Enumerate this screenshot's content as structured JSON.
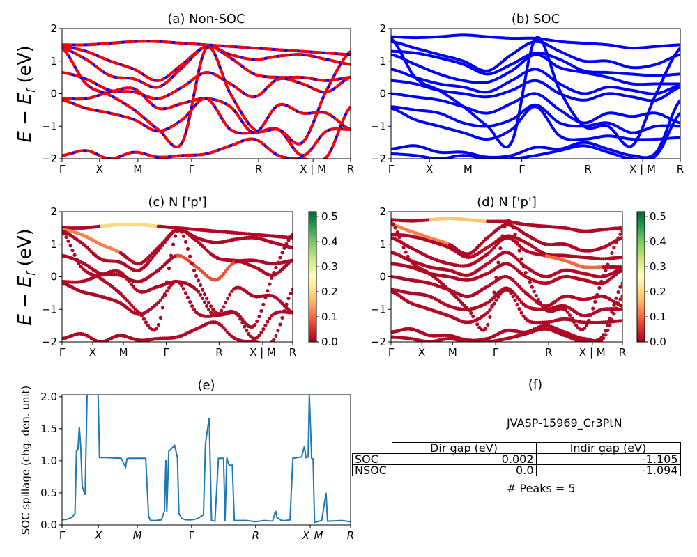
{
  "figure": {
    "material_label": "JVASP-15969_Cr3PtN",
    "peaks_label": "# Peaks = 5"
  },
  "gap_table": {
    "headers": [
      "",
      "Dir gap (eV)",
      "Indir gap (eV)"
    ],
    "rows": [
      {
        "label": "SOC",
        "dir": "0.002",
        "indir": "-1.105"
      },
      {
        "label": "NSOC",
        "dir": "0.0",
        "indir": "-1.094"
      }
    ]
  },
  "colors": {
    "nonsoc_red": "#ff0000",
    "nonsoc_blue": "#0000ff",
    "soc_blue": "#0000ff",
    "spillage_line": "#1f77b4",
    "cmap": [
      "#a50026",
      "#d73027",
      "#f46d43",
      "#fdae61",
      "#fee08b",
      "#ffffbf",
      "#d9ef8b",
      "#a6d96a",
      "#66bd63",
      "#1a9850",
      "#006837"
    ]
  },
  "chart_data": [
    {
      "id": "a",
      "type": "line",
      "title": "(a) Non-SOC",
      "ylabel": "E − E_f (eV)",
      "ylim": [
        -2,
        2
      ],
      "yticks": [
        "−2",
        "−1",
        "0",
        "1",
        "2"
      ],
      "ytick_values": [
        -2,
        -1,
        0,
        1,
        2
      ],
      "xticks": [
        "Γ",
        "X",
        "M",
        "Γ",
        "R",
        "X | M",
        "R"
      ],
      "xtick_values": [
        0,
        0.13,
        0.263,
        0.449,
        0.681,
        0.87,
        1.0
      ],
      "style": "red-blue-dashed",
      "bands": [
        [
          1.5,
          1.5,
          1.55,
          1.6,
          1.6,
          1.55,
          1.5,
          1.45,
          1.4,
          1.35,
          1.3,
          1.25,
          1.2
        ],
        [
          1.45,
          1.3,
          1.0,
          0.75,
          0.4,
          0.9,
          1.45,
          1.2,
          1.05,
          1.15,
          1.2,
          1.05,
          0.9
        ],
        [
          1.4,
          1.05,
          0.55,
          0.45,
          0.2,
          0.8,
          1.45,
          1.1,
          0.6,
          0.5,
          0.5,
          0.4,
          0.5
        ],
        [
          0.65,
          0.45,
          0.1,
          0.05,
          -0.15,
          0.2,
          0.65,
          0.3,
          -0.1,
          0.45,
          0.3,
          0.05,
          0.5
        ],
        [
          -0.15,
          -0.15,
          0.05,
          0.15,
          -0.45,
          -0.3,
          -0.15,
          -0.4,
          -1.2,
          -0.35,
          -0.6,
          -0.6,
          -1.1
        ],
        [
          -0.2,
          -0.45,
          -0.6,
          -0.8,
          -1.15,
          -0.8,
          -0.15,
          -1.1,
          -1.2,
          -1.1,
          -1.9,
          -1.15,
          -1.1
        ],
        [
          -1.9,
          -1.75,
          -2.0,
          -1.8,
          -1.95,
          -1.9,
          -1.85,
          -1.6,
          -1.4,
          -1.9,
          -2.0,
          -1.95,
          -0.4
        ],
        [
          1.4,
          0.3,
          -0.05,
          -0.5,
          -1.1,
          -1.5,
          1.4,
          0.0,
          -1.1,
          -1.1,
          -1.5,
          0.1,
          1.3
        ]
      ]
    },
    {
      "id": "b",
      "type": "line",
      "title": "(b) SOC",
      "ylim": [
        -2,
        2
      ],
      "yticks": [
        "−2",
        "−1",
        "0",
        "1",
        "2"
      ],
      "ytick_values": [
        -2,
        -1,
        0,
        1,
        2
      ],
      "xticks": [
        "Γ",
        "X",
        "M",
        "Γ",
        "R",
        "X | M",
        "R"
      ],
      "xtick_values": [
        0,
        0.133,
        0.266,
        0.452,
        0.681,
        0.87,
        1.0
      ],
      "style": "blue",
      "bands": [
        [
          1.75,
          1.72,
          1.75,
          1.8,
          1.75,
          1.7,
          1.7,
          1.6,
          1.55,
          1.5,
          1.4,
          1.45,
          1.5
        ],
        [
          1.6,
          1.4,
          1.2,
          1.0,
          0.7,
          1.2,
          1.6,
          1.3,
          1.0,
          1.0,
          0.8,
          0.9,
          1.2
        ],
        [
          1.3,
          1.25,
          1.1,
          0.9,
          0.6,
          0.9,
          1.25,
          1.05,
          0.7,
          0.65,
          0.6,
          0.55,
          0.6
        ],
        [
          1.2,
          0.9,
          0.6,
          0.4,
          0.35,
          0.7,
          1.2,
          0.8,
          0.65,
          0.5,
          0.3,
          0.3,
          0.3
        ],
        [
          0.75,
          0.5,
          0.3,
          0.2,
          0.05,
          0.4,
          0.75,
          0.3,
          0.0,
          0.2,
          0.1,
          0.0,
          0.25
        ],
        [
          0.4,
          0.3,
          0.1,
          0.0,
          -0.1,
          0.1,
          0.4,
          0.0,
          -0.2,
          0.0,
          -0.1,
          -0.2,
          0.2
        ],
        [
          0.0,
          -0.1,
          -0.2,
          -0.4,
          -0.6,
          -0.3,
          0.0,
          -0.5,
          -0.9,
          -0.6,
          -0.7,
          -0.6,
          -0.9
        ],
        [
          -0.4,
          -0.5,
          -0.6,
          -0.9,
          -1.0,
          -0.8,
          -0.35,
          -0.9,
          -1.0,
          -0.9,
          -1.2,
          -1.0,
          -1.0
        ],
        [
          -0.45,
          -0.8,
          -1.0,
          -1.2,
          -1.4,
          -1.1,
          -0.4,
          -1.3,
          -1.4,
          -1.3,
          -1.4,
          -1.4,
          -1.35
        ],
        [
          -1.7,
          -1.6,
          -1.8,
          -1.8,
          -1.95,
          -1.9,
          -1.65,
          -1.7,
          -1.5,
          -1.7,
          -1.9,
          -1.8,
          -0.2
        ],
        [
          -1.85,
          -1.9,
          -2.0,
          -1.9,
          -2.0,
          -2.0,
          -1.9,
          -1.75,
          -1.6,
          -1.8,
          -2.0,
          -1.9,
          -0.6
        ],
        [
          1.7,
          0.5,
          0.1,
          -0.4,
          -1.0,
          -1.5,
          1.7,
          0.1,
          -1.0,
          -1.0,
          -1.6,
          0.0,
          1.4
        ]
      ]
    },
    {
      "id": "c",
      "type": "scatter",
      "title": "(c)  N ['p']",
      "ylabel": "E − E_f (eV)",
      "ylim": [
        -2,
        2
      ],
      "yticks": [
        "−2",
        "−1",
        "0",
        "1",
        "2"
      ],
      "ytick_values": [
        -2,
        -1,
        0,
        1,
        2
      ],
      "xticks": [
        "Γ",
        "X",
        "M",
        "Γ",
        "R",
        "X | M",
        "R"
      ],
      "xtick_values": [
        0,
        0.133,
        0.266,
        0.452,
        0.681,
        0.87,
        1.0
      ],
      "colorbar": {
        "ticks": [
          "0.0",
          "0.1",
          "0.2",
          "0.3",
          "0.4",
          "0.5"
        ],
        "tick_values": [
          0,
          0.1,
          0.2,
          0.3,
          0.4,
          0.5
        ],
        "range": [
          0,
          0.52
        ]
      },
      "weights": [
        0.02,
        0.02,
        0.03,
        0.02,
        0.02,
        0.03,
        0.02,
        0.02
      ],
      "highlight": [
        {
          "band": 0,
          "from": 2,
          "to": 5,
          "weight": 0.2
        },
        {
          "band": 1,
          "from": 0,
          "to": 3,
          "weight": 0.12
        },
        {
          "band": 3,
          "from": 6,
          "to": 9,
          "weight": 0.08
        }
      ],
      "bands_ref": "a"
    },
    {
      "id": "d",
      "type": "scatter",
      "title": "(d) N ['p']",
      "ylim": [
        -2,
        2
      ],
      "yticks": [
        "−2",
        "−1",
        "0",
        "1",
        "2"
      ],
      "ytick_values": [
        -2,
        -1,
        0,
        1,
        2
      ],
      "xticks": [
        "Γ",
        "X",
        "M",
        "Γ",
        "R",
        "X | M",
        "R"
      ],
      "xtick_values": [
        0,
        0.133,
        0.266,
        0.452,
        0.681,
        0.87,
        1.0
      ],
      "colorbar": {
        "ticks": [
          "0.0",
          "0.1",
          "0.2",
          "0.3",
          "0.4",
          "0.5"
        ],
        "tick_values": [
          0,
          0.1,
          0.2,
          0.3,
          0.4,
          0.5
        ],
        "range": [
          0,
          0.52
        ]
      },
      "highlight": [
        {
          "band": 0,
          "from": 2,
          "to": 5,
          "weight": 0.18
        },
        {
          "band": 1,
          "from": 0,
          "to": 3,
          "weight": 0.12
        },
        {
          "band": 3,
          "from": 8,
          "to": 11,
          "weight": 0.1
        }
      ],
      "bands_ref": "b"
    },
    {
      "id": "e",
      "type": "line",
      "title": "(e)",
      "ylabel": "SOC spillage (chg. den. unit)",
      "ylim": [
        0,
        2.03
      ],
      "yticks": [
        "0.0",
        "0.5",
        "1.0",
        "1.5",
        "2.0"
      ],
      "ytick_values": [
        0,
        0.5,
        1.0,
        1.5,
        2.0
      ],
      "xticks": [
        "Γ",
        "X",
        "M",
        "Γ",
        "R",
        "X",
        "M",
        "R"
      ],
      "xtick_values": [
        0,
        0.126,
        0.261,
        0.449,
        0.671,
        0.86,
        0.866,
        1.0
      ],
      "x": [
        0,
        0.02,
        0.035,
        0.045,
        0.05,
        0.055,
        0.06,
        0.065,
        0.07,
        0.08,
        0.087,
        0.095,
        0.1,
        0.115,
        0.125,
        0.13,
        0.14,
        0.15,
        0.205,
        0.22,
        0.225,
        0.23,
        0.29,
        0.3,
        0.305,
        0.31,
        0.325,
        0.345,
        0.355,
        0.36,
        0.363,
        0.37,
        0.375,
        0.39,
        0.4,
        0.405,
        0.415,
        0.43,
        0.45,
        0.47,
        0.49,
        0.497,
        0.51,
        0.518,
        0.53,
        0.542,
        0.546,
        0.56,
        0.565,
        0.571,
        0.577,
        0.582,
        0.59,
        0.597,
        0.605,
        0.64,
        0.67,
        0.7,
        0.73,
        0.74,
        0.745,
        0.76,
        0.775,
        0.79,
        0.8,
        0.83,
        0.84,
        0.845,
        0.853,
        0.857,
        0.86,
        0.865,
        0.87,
        0.875,
        0.884,
        0.9,
        0.915,
        0.92,
        0.926,
        0.97,
        1.0
      ],
      "y": [
        0.08,
        0.09,
        0.12,
        0.18,
        1.15,
        1.17,
        1.53,
        1.2,
        0.6,
        0.47,
        2.03,
        2.03,
        2.03,
        2.03,
        2.03,
        1.05,
        1.05,
        1.05,
        1.04,
        0.9,
        1.03,
        1.04,
        1.04,
        0.14,
        0.08,
        0.07,
        0.07,
        0.08,
        0.22,
        1.01,
        0.2,
        1.15,
        1.17,
        1.24,
        1.05,
        0.18,
        0.1,
        0.08,
        0.08,
        0.1,
        0.16,
        1.27,
        1.67,
        0.07,
        0.06,
        1.04,
        1.04,
        1.04,
        0.06,
        1.05,
        0.95,
        0.93,
        0.93,
        0.07,
        0.07,
        0.07,
        0.05,
        0.07,
        0.06,
        0.22,
        0.12,
        0.07,
        0.07,
        0.08,
        1.04,
        1.06,
        1.23,
        1.05,
        1.06,
        2.03,
        1.67,
        1.04,
        1.03,
        0.04,
        0.05,
        0.07,
        0.5,
        0.06,
        0.06,
        0.07,
        0.05
      ]
    },
    {
      "id": "f",
      "type": "table",
      "title": "(f)"
    }
  ]
}
